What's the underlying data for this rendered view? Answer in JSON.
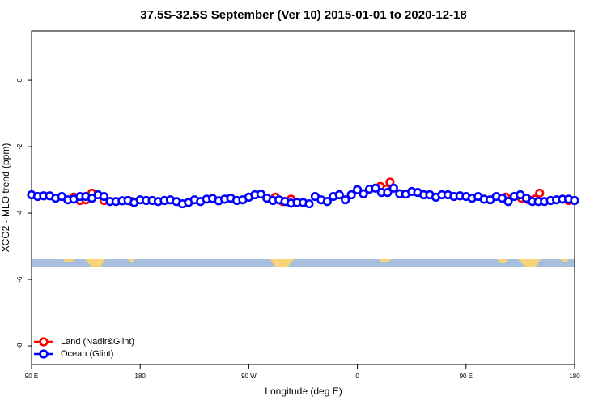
{
  "chart_data": {
    "type": "scatter",
    "title": "37.5S-32.5S September (Ver 10)   2015-01-01 to 2020-12-18",
    "x_label": "Longitude (deg E)",
    "y_label": "XCO2 - MLO trend (ppm)",
    "xlim": [
      90,
      540
    ],
    "ylim": [
      -8.56,
      1.49
    ],
    "xticks": [
      {
        "value": 90,
        "label": "90 E"
      },
      180,
      {
        "value": 270,
        "label": "90 W"
      },
      {
        "value": 360,
        "label": "0"
      },
      {
        "value": 450,
        "label": "90 E"
      },
      {
        "value": 540,
        "label": "180"
      }
    ],
    "yticks": [
      0,
      -2,
      -4,
      -6,
      -8
    ],
    "legend": "bottom-left",
    "series": [
      {
        "name": "Land (Nadir&Glint)",
        "color": "#ff0000",
        "x": [
          125,
          130,
          135,
          140,
          150,
          173,
          292,
          298,
          305,
          379,
          384,
          387,
          483,
          496,
          502,
          507,
          511,
          535
        ],
        "values": [
          -3.52,
          -3.62,
          -3.6,
          -3.4,
          -3.62,
          -3.65,
          -3.52,
          -3.65,
          -3.58,
          -3.2,
          -3.28,
          -3.07,
          -3.52,
          -3.55,
          -3.6,
          -3.58,
          -3.4,
          -3.62
        ]
      },
      {
        "name": "Ocean (Glint)",
        "color": "#0000ff",
        "x": [
          90,
          95,
          100,
          105,
          110,
          115,
          120,
          125,
          130,
          135,
          140,
          145,
          150,
          155,
          160,
          165,
          170,
          175,
          180,
          185,
          190,
          195,
          200,
          205,
          210,
          215,
          220,
          225,
          230,
          235,
          240,
          245,
          250,
          255,
          260,
          265,
          270,
          275,
          280,
          285,
          290,
          295,
          300,
          305,
          310,
          315,
          320,
          325,
          330,
          335,
          340,
          345,
          350,
          355,
          360,
          365,
          370,
          375,
          380,
          385,
          390,
          395,
          400,
          405,
          410,
          415,
          420,
          425,
          430,
          435,
          440,
          445,
          450,
          455,
          460,
          465,
          470,
          475,
          480,
          485,
          490,
          495,
          500,
          505,
          510,
          515,
          520,
          525,
          530,
          535,
          540
        ],
        "values": [
          -3.45,
          -3.5,
          -3.48,
          -3.48,
          -3.55,
          -3.5,
          -3.6,
          -3.58,
          -3.5,
          -3.5,
          -3.55,
          -3.45,
          -3.5,
          -3.65,
          -3.65,
          -3.63,
          -3.62,
          -3.68,
          -3.6,
          -3.62,
          -3.62,
          -3.65,
          -3.62,
          -3.6,
          -3.65,
          -3.72,
          -3.68,
          -3.6,
          -3.65,
          -3.58,
          -3.56,
          -3.63,
          -3.58,
          -3.55,
          -3.62,
          -3.6,
          -3.52,
          -3.45,
          -3.43,
          -3.55,
          -3.62,
          -3.6,
          -3.65,
          -3.7,
          -3.68,
          -3.68,
          -3.72,
          -3.5,
          -3.6,
          -3.65,
          -3.5,
          -3.45,
          -3.6,
          -3.45,
          -3.3,
          -3.42,
          -3.28,
          -3.25,
          -3.38,
          -3.38,
          -3.25,
          -3.42,
          -3.43,
          -3.35,
          -3.38,
          -3.45,
          -3.45,
          -3.52,
          -3.45,
          -3.45,
          -3.5,
          -3.48,
          -3.5,
          -3.55,
          -3.5,
          -3.58,
          -3.6,
          -3.5,
          -3.55,
          -3.65,
          -3.5,
          -3.45,
          -3.55,
          -3.65,
          -3.65,
          -3.65,
          -3.62,
          -3.6,
          -3.58,
          -3.58,
          -3.62
        ]
      }
    ]
  }
}
